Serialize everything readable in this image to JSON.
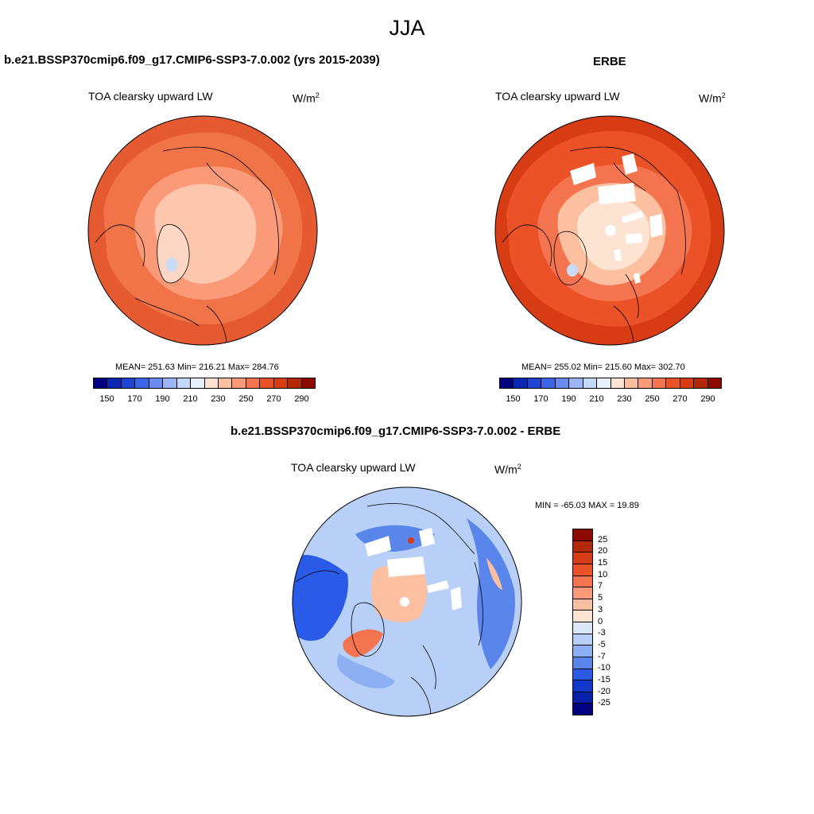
{
  "figure": {
    "title": "JJA"
  },
  "panels": {
    "model": {
      "case_title": "b.e21.BSSP370cmip6.f09_g17.CMIP6-SSP3-7.0.002 (yrs 2015-2039)",
      "label": "TOA clearsky upward LW",
      "units": "W/m",
      "units_sup": "2",
      "stats": "MEAN= 251.63  Min= 216.21  Max= 284.76"
    },
    "obs": {
      "case_title": "ERBE",
      "label": "TOA clearsky upward LW",
      "units": "W/m",
      "units_sup": "2",
      "stats": "MEAN= 255.02  Min= 215.60  Max= 302.70"
    },
    "diff": {
      "case_title": "b.e21.BSSP370cmip6.f09_g17.CMIP6-SSP3-7.0.002 - ERBE",
      "label": "TOA clearsky upward LW",
      "units": "W/m",
      "units_sup": "2",
      "stats": "MIN = -65.03 MAX =  19.89"
    }
  },
  "colorbar_abs": {
    "colors": [
      "#000080",
      "#0a28b4",
      "#1e46d2",
      "#3c64e6",
      "#6a8cf0",
      "#9ab4f5",
      "#c4d8fa",
      "#e6f0fc",
      "#fde4d2",
      "#fcc0a0",
      "#fa9a78",
      "#f47450",
      "#ec5228",
      "#d83c14",
      "#b4280a",
      "#8c0a00"
    ],
    "ticks": [
      "150",
      "170",
      "190",
      "210",
      "230",
      "250",
      "270",
      "290"
    ]
  },
  "colorbar_diff": {
    "colors": [
      "#8c0a00",
      "#b42a08",
      "#d83c14",
      "#ec5228",
      "#f47450",
      "#fa9a78",
      "#fcc0a0",
      "#fde4d2",
      "#dce8fa",
      "#b8d0f8",
      "#8cb0f2",
      "#5a86ec",
      "#2a5ae8",
      "#1038cc",
      "#0820aa",
      "#000080"
    ],
    "ticks": [
      "25",
      "20",
      "15",
      "10",
      "7",
      "5",
      "3",
      "0",
      "-3",
      "-5",
      "-7",
      "-10",
      "-15",
      "-20",
      "-25"
    ]
  }
}
